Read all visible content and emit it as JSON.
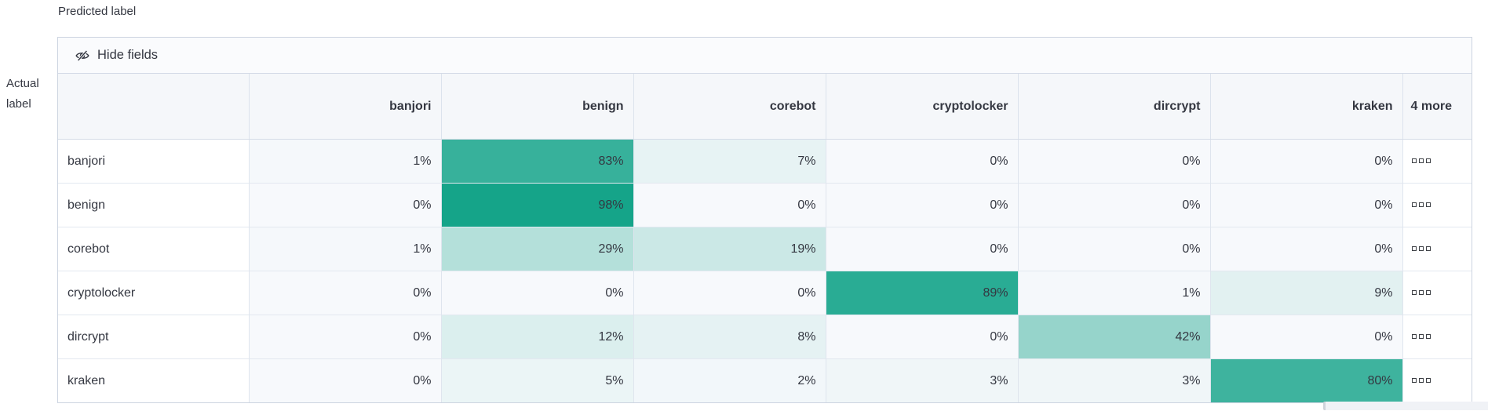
{
  "axes": {
    "predicted": "Predicted label",
    "actual": "Actual label"
  },
  "toolbar": {
    "hide_fields": "Hide fields",
    "icon": "eye-slash-icon"
  },
  "chart_data": {
    "type": "heatmap",
    "x_label": "Predicted label",
    "y_label": "Actual label",
    "unit": "%",
    "columns": [
      "banjori",
      "benign",
      "corebot",
      "cryptolocker",
      "dircrypt",
      "kraken"
    ],
    "more_column_label": "4 more",
    "rows": [
      {
        "label": "banjori",
        "values": [
          1,
          83,
          7,
          0,
          0,
          0
        ]
      },
      {
        "label": "benign",
        "values": [
          0,
          98,
          0,
          0,
          0,
          0
        ]
      },
      {
        "label": "corebot",
        "values": [
          1,
          29,
          19,
          0,
          0,
          0
        ]
      },
      {
        "label": "cryptolocker",
        "values": [
          0,
          0,
          0,
          89,
          1,
          9
        ]
      },
      {
        "label": "dircrypt",
        "values": [
          0,
          12,
          8,
          0,
          42,
          0
        ]
      },
      {
        "label": "kraken",
        "values": [
          0,
          5,
          2,
          3,
          3,
          80
        ]
      }
    ],
    "legend": "none",
    "color_mapping": "cell background = heat_base at opacity value/100 over cell_default"
  },
  "more_cell_icon": "boxes-horizontal-icon",
  "colors": {
    "heat_base": "#10A287",
    "cell_default": "#F7F9FC",
    "header_bg": "#F5F7FA",
    "toolbar_bg": "#FAFBFD",
    "border": "#D3DAE6",
    "text": "#343741"
  }
}
